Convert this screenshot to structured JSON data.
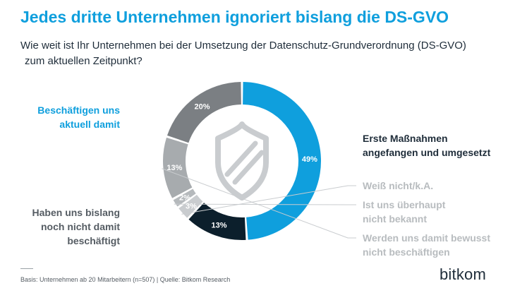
{
  "title": "Jedes dritte Unternehmen ignoriert bislang die DS-GVO",
  "subtitle": {
    "line1": "Wie weit ist Ihr Unternehmen bei der Umsetzung der Datenschutz-Grundverordnung (DS-GVO)",
    "line2": "zum aktuellen Zeitpunkt?"
  },
  "chart_data": {
    "type": "pie",
    "variant": "donut",
    "series": [
      {
        "name": "Beschäftigen uns aktuell damit",
        "value": 49,
        "label": "49%",
        "color": "#0f9fdd"
      },
      {
        "name": "Erste Maßnahmen angefangen und umgesetzt",
        "value": 13,
        "label": "13%",
        "color": "#0c1f2c"
      },
      {
        "name": "Weiß nicht/k.A.",
        "value": 3,
        "label": "3%",
        "color": "#c9cccf"
      },
      {
        "name": "Ist uns überhaupt nicht bekannt",
        "value": 2,
        "label": "2%",
        "color": "#b5b9bc"
      },
      {
        "name": "Werden uns damit bewusst nicht beschäftigen",
        "value": 13,
        "label": "13%",
        "color": "#a7abae"
      },
      {
        "name": "Haben uns bislang noch nicht damit beschäftigt",
        "value": 20,
        "label": "20%",
        "color": "#7b7f83"
      }
    ]
  },
  "labels": {
    "blue": {
      "line1": "Beschäftigen uns",
      "line2": "aktuell damit"
    },
    "dark": {
      "line1": "Erste Maßnahmen",
      "line2": "angefangen und umgesetzt"
    },
    "gray": {
      "line1": "Haben uns bislang",
      "line2": "noch nicht damit",
      "line3": "beschäftigt"
    },
    "weiss": {
      "line1": "Weiß nicht/k.A."
    },
    "bekannt": {
      "line1": "Ist uns überhaupt",
      "line2": "nicht bekannt"
    },
    "bewusst": {
      "line1": "Werden uns damit bewusst",
      "line2": "nicht beschäftigen"
    }
  },
  "footnote": "Basis: Unternehmen ab 20 Mitarbeitern  (n=507) | Quelle: Bitkom Research",
  "logo": "bitkom"
}
